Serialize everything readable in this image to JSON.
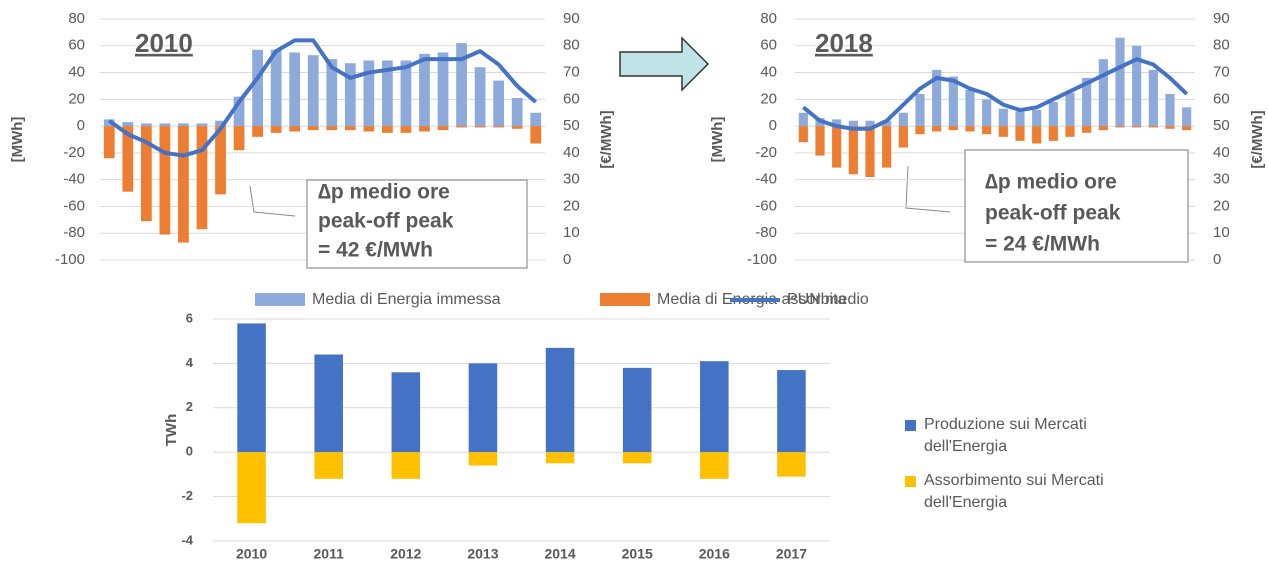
{
  "chart_data": [
    {
      "type": "bar",
      "title": "2010",
      "ylabel": "[MWh]",
      "y2label": "[€/MWh]",
      "annotation": [
        "∆p medio ore",
        "peak-off peak",
        "= 42 €/MWh"
      ],
      "categories": [
        null,
        null,
        null,
        null,
        null,
        null,
        null,
        null,
        null,
        null,
        null,
        null,
        null,
        null,
        null,
        null,
        null,
        null,
        null,
        null,
        null,
        null,
        null,
        null
      ],
      "stacked": true,
      "grid": true,
      "legend": "bottom",
      "ylim": [
        -100,
        80
      ],
      "yticks": [
        -100,
        -80,
        -60,
        -40,
        -20,
        0,
        20,
        40,
        60,
        80
      ],
      "y2lim": [
        0,
        90
      ],
      "y2ticks": [
        0,
        10,
        20,
        30,
        40,
        50,
        60,
        70,
        80,
        90
      ],
      "series": [
        {
          "name": "Media di Energia immessa",
          "color": "#8eaadb",
          "values": [
            5,
            3,
            2,
            2,
            2,
            2,
            4,
            22,
            57,
            57,
            55,
            53,
            50,
            47,
            49,
            49,
            49,
            54,
            55,
            62,
            44,
            34,
            21,
            10
          ]
        },
        {
          "name": "Media di Energia assorbita",
          "color": "#ed7d31",
          "values": [
            -24,
            -49,
            -71,
            -81,
            -87,
            -77,
            -51,
            -18,
            -8,
            -5,
            -4,
            -3,
            -3,
            -3,
            -4,
            -5,
            -5,
            -4,
            -3,
            -1,
            -1,
            -1,
            -2,
            -13
          ]
        },
        {
          "name": "PUN medio",
          "color": "#4472c4",
          "type": "line",
          "axis": "y2",
          "values": [
            52,
            47,
            44,
            40,
            39,
            41,
            49,
            59,
            68,
            78,
            82,
            82,
            72,
            68,
            70,
            71,
            72,
            75,
            75,
            75,
            78,
            73,
            65,
            59
          ]
        }
      ]
    },
    {
      "type": "bar",
      "title": "2018",
      "ylabel": "[MWh]",
      "y2label": "[€/MWh]",
      "annotation": [
        "∆p medio ore",
        "peak-off peak",
        "= 24 €/MWh"
      ],
      "categories": [
        null,
        null,
        null,
        null,
        null,
        null,
        null,
        null,
        null,
        null,
        null,
        null,
        null,
        null,
        null,
        null,
        null,
        null,
        null,
        null,
        null,
        null,
        null,
        null
      ],
      "stacked": true,
      "grid": true,
      "ylim": [
        -100,
        80
      ],
      "yticks": [
        -100,
        -80,
        -60,
        -40,
        -20,
        0,
        20,
        40,
        60,
        80
      ],
      "y2lim": [
        0,
        90
      ],
      "y2ticks": [
        0,
        10,
        20,
        30,
        40,
        50,
        60,
        70,
        80,
        90
      ],
      "series": [
        {
          "color": "#8eaadb",
          "values": [
            10,
            6,
            5,
            4,
            4,
            4,
            10,
            24,
            42,
            37,
            27,
            20,
            13,
            11,
            12,
            18,
            25,
            36,
            50,
            66,
            60,
            42,
            24,
            14
          ]
        },
        {
          "color": "#ed7d31",
          "values": [
            -12,
            -22,
            -31,
            -36,
            -38,
            -31,
            -16,
            -6,
            -4,
            -3,
            -4,
            -6,
            -8,
            -11,
            -13,
            -11,
            -8,
            -5,
            -3,
            -1,
            -1,
            -1,
            -2,
            -3
          ]
        },
        {
          "color": "#4472c4",
          "type": "line",
          "axis": "y2",
          "values": [
            57,
            52,
            50,
            49,
            49,
            52,
            58,
            64,
            68,
            67,
            64,
            62,
            58,
            56,
            57,
            60,
            63,
            66,
            69,
            72,
            75,
            73,
            68,
            62
          ]
        }
      ]
    },
    {
      "type": "bar",
      "ylabel": "TWh",
      "stacked": true,
      "grid": true,
      "legend": "right",
      "categories": [
        "2010",
        "2011",
        "2012",
        "2013",
        "2014",
        "2015",
        "2016",
        "2017"
      ],
      "ylim": [
        -4,
        6
      ],
      "yticks": [
        -4,
        -2,
        0,
        2,
        4,
        6
      ],
      "series": [
        {
          "name": "Produzione sui Mercati dell'Energia",
          "color": "#4472c4",
          "values": [
            5.8,
            4.4,
            3.6,
            4.0,
            4.7,
            3.8,
            4.1,
            3.7
          ]
        },
        {
          "name": "Assorbimento sui Mercati dell'Energia",
          "color": "#ffc000",
          "values": [
            -3.2,
            -1.2,
            -1.2,
            -0.6,
            -0.5,
            -0.5,
            -1.2,
            -1.1
          ]
        }
      ]
    }
  ]
}
